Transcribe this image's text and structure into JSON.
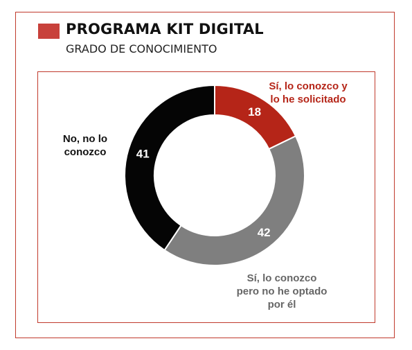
{
  "header": {
    "title": "PROGRAMA KIT DIGITAL",
    "subtitle": "GRADO DE CONOCIMIENTO"
  },
  "colors": {
    "accent": "#c8413b",
    "frame": "#c0392b"
  },
  "chart_data": {
    "type": "pie",
    "donut": true,
    "title": "PROGRAMA KIT DIGITAL",
    "subtitle": "GRADO DE CONOCIMIENTO",
    "legend": "none",
    "slices": [
      {
        "label": "Sí, lo conozco y lo he solicitado",
        "label_lines": "Sí, lo conozco y\nlo he solicitado",
        "value": 18,
        "value_label": "18",
        "color": "#b52518",
        "label_color": "#b52518"
      },
      {
        "label": "Sí, lo conozco pero no he optado por él",
        "label_lines": "Sí, lo conozco\npero no he optado\npor él",
        "value": 42,
        "value_label": "42",
        "color": "#7f7f7f",
        "label_color": "#666666"
      },
      {
        "label": "No, no lo conozco",
        "label_lines": "No, no lo\nconozco",
        "value": 41,
        "value_label": "41",
        "color": "#050505",
        "label_color": "#111111"
      }
    ]
  }
}
